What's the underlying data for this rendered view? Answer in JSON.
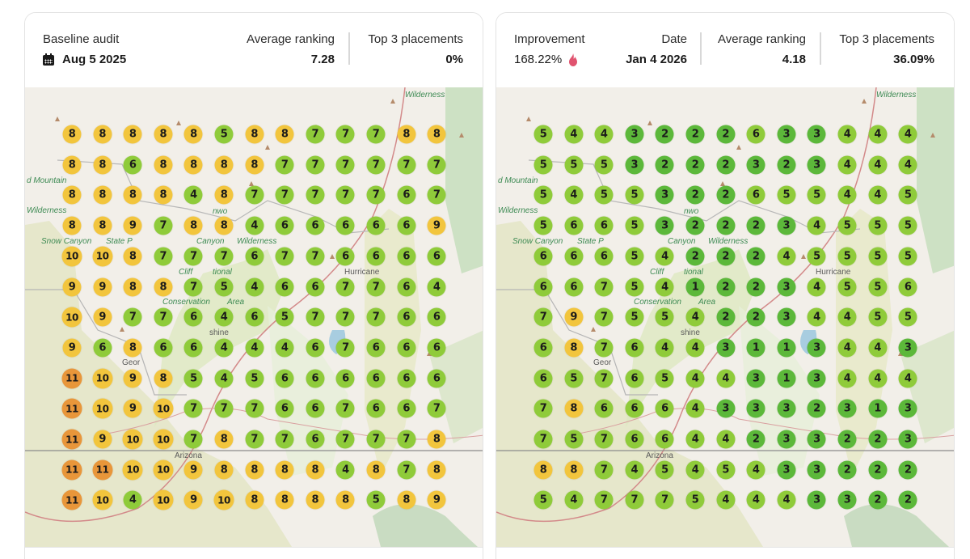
{
  "baseline": {
    "title": "Baseline audit",
    "date": "Aug 5 2025",
    "avg_ranking_label": "Average ranking",
    "avg_ranking_value": "7.28",
    "top3_label": "Top 3 placements",
    "top3_value": "0%",
    "grid": [
      [
        8,
        8,
        8,
        8,
        8,
        5,
        8,
        8,
        7,
        7,
        7,
        8,
        8
      ],
      [
        8,
        8,
        6,
        8,
        8,
        8,
        8,
        7,
        7,
        7,
        7,
        7,
        7
      ],
      [
        8,
        8,
        8,
        8,
        4,
        8,
        7,
        7,
        7,
        7,
        7,
        6,
        7
      ],
      [
        8,
        8,
        9,
        7,
        8,
        8,
        4,
        6,
        6,
        6,
        6,
        6,
        9
      ],
      [
        10,
        10,
        8,
        7,
        7,
        7,
        6,
        7,
        7,
        6,
        6,
        6,
        6
      ],
      [
        9,
        9,
        8,
        8,
        7,
        5,
        4,
        6,
        6,
        7,
        7,
        6,
        4
      ],
      [
        10,
        9,
        7,
        7,
        6,
        4,
        6,
        5,
        7,
        7,
        7,
        6,
        6
      ],
      [
        9,
        6,
        8,
        6,
        6,
        4,
        4,
        4,
        6,
        7,
        6,
        6,
        6
      ],
      [
        11,
        10,
        9,
        8,
        5,
        4,
        5,
        6,
        6,
        6,
        6,
        6,
        6
      ],
      [
        11,
        10,
        9,
        10,
        7,
        7,
        7,
        6,
        6,
        7,
        6,
        6,
        7
      ],
      [
        11,
        9,
        10,
        10,
        7,
        8,
        7,
        7,
        6,
        7,
        7,
        7,
        8
      ],
      [
        11,
        11,
        10,
        10,
        9,
        8,
        8,
        8,
        8,
        4,
        8,
        7,
        8
      ],
      [
        11,
        10,
        4,
        10,
        9,
        10,
        8,
        8,
        8,
        8,
        5,
        8,
        9
      ]
    ]
  },
  "current": {
    "improvement_label": "Improvement",
    "improvement_value": "168.22%",
    "improvement_icon": "flame-icon",
    "date_label": "Date",
    "date": "Jan 4 2026",
    "avg_ranking_label": "Average ranking",
    "avg_ranking_value": "4.18",
    "top3_label": "Top 3 placements",
    "top3_value": "36.09%",
    "grid": [
      [
        5,
        4,
        4,
        3,
        2,
        2,
        2,
        6,
        3,
        3,
        4,
        4,
        4
      ],
      [
        5,
        5,
        5,
        3,
        2,
        2,
        2,
        3,
        2,
        3,
        4,
        4,
        4
      ],
      [
        5,
        4,
        5,
        5,
        3,
        2,
        2,
        6,
        5,
        5,
        4,
        4,
        5
      ],
      [
        5,
        6,
        6,
        5,
        3,
        2,
        2,
        2,
        3,
        4,
        5,
        5,
        5
      ],
      [
        6,
        6,
        6,
        5,
        4,
        2,
        2,
        2,
        4,
        5,
        5,
        5,
        5
      ],
      [
        6,
        6,
        7,
        5,
        4,
        1,
        2,
        2,
        3,
        4,
        5,
        5,
        6
      ],
      [
        7,
        9,
        7,
        5,
        5,
        4,
        2,
        2,
        3,
        4,
        4,
        5,
        5
      ],
      [
        6,
        8,
        7,
        6,
        4,
        4,
        3,
        1,
        1,
        3,
        4,
        4,
        3
      ],
      [
        6,
        5,
        7,
        6,
        5,
        4,
        4,
        3,
        1,
        3,
        4,
        4,
        4
      ],
      [
        7,
        8,
        6,
        6,
        6,
        4,
        3,
        3,
        3,
        2,
        3,
        1,
        3
      ],
      [
        7,
        5,
        7,
        6,
        6,
        4,
        4,
        2,
        3,
        3,
        2,
        2,
        3
      ],
      [
        8,
        8,
        7,
        4,
        5,
        4,
        5,
        4,
        3,
        3,
        2,
        2,
        2
      ],
      [
        5,
        4,
        7,
        7,
        7,
        5,
        4,
        4,
        4,
        3,
        3,
        2,
        2
      ]
    ]
  },
  "map_labels": {
    "mountain": "d Mountain",
    "wilderness": "Wilderness",
    "wilderness_top": "Wilderness",
    "snow_canyon": "Snow Canyon",
    "state": "State P",
    "cotton": "nwo",
    "canyon": "Canyon",
    "wild2": "Wilderness",
    "cliffs": "Cliff",
    "national": "tional",
    "conservation": "Conservation",
    "area": "Area",
    "hurricane": "Hurricane",
    "george": "Geor",
    "shine": "shine",
    "arizona": "Arizona"
  },
  "colors": {
    "rank_1_3": "#5cb83a",
    "rank_4_7": "#8fcb3a",
    "rank_8_10": "#f2c53d",
    "rank_11_plus": "#e8963a",
    "flame": "#e0536f"
  }
}
